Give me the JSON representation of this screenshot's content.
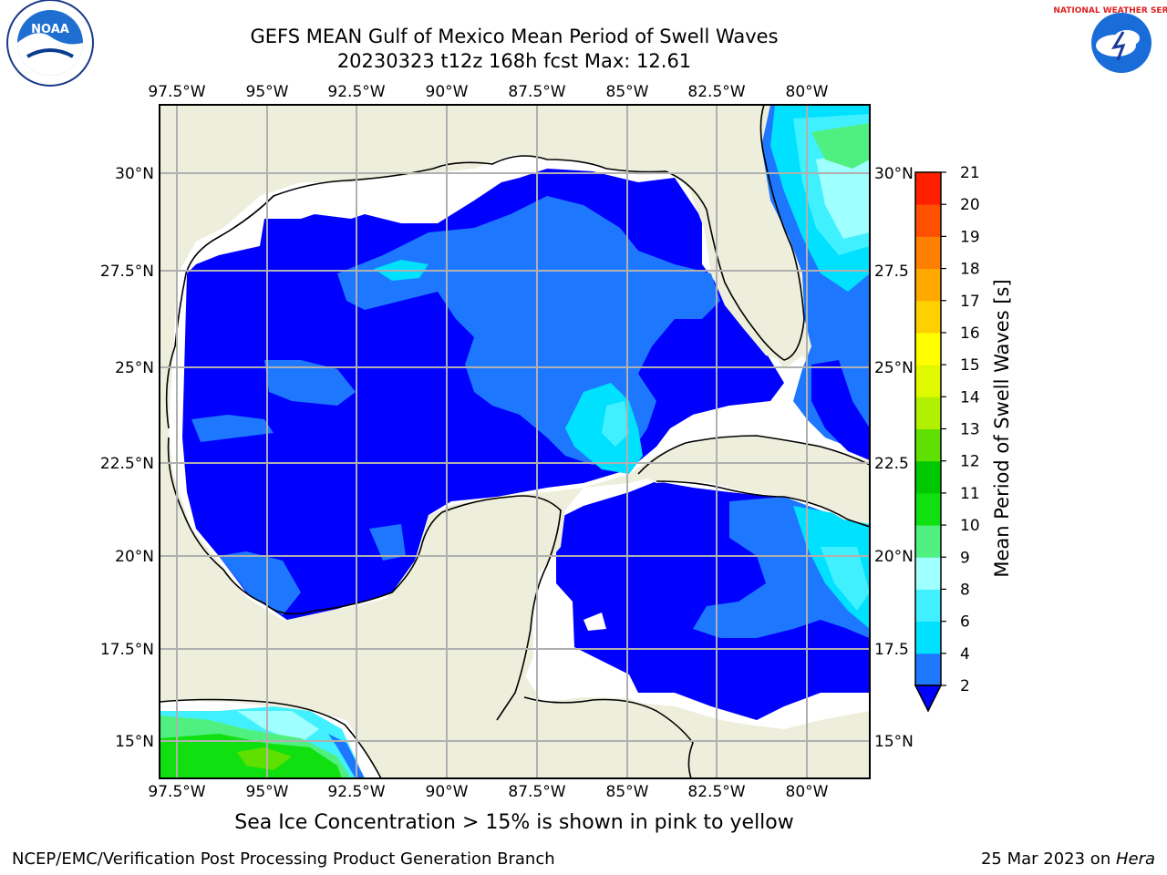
{
  "title": {
    "line1": "GEFS MEAN Gulf of Mexico Mean Period of Swell Waves",
    "line2": "20230323 t12z 168h fcst   Max: 12.61"
  },
  "caption": "Sea Ice Concentration > 15% is shown in pink to yellow",
  "footer": {
    "left": "NCEP/EMC/Verification Post Processing Product Generation Branch",
    "date": "25 Mar 2023 on ",
    "host": "Hera"
  },
  "logos": {
    "left_label": "NOAA",
    "right_label": "NATIONAL WEATHER SERVICE"
  },
  "map": {
    "lon_labels": [
      "97.5°W",
      "95°W",
      "92.5°W",
      "90°W",
      "87.5°W",
      "85°W",
      "82.5°W",
      "80°W"
    ],
    "lat_labels_left": [
      "30°N",
      "27.5°N",
      "25°N",
      "22.5°N",
      "20°N",
      "17.5°N",
      "15°N"
    ],
    "lat_labels_right": [
      "30°N",
      "27.5",
      "25°N",
      "22.5",
      "20°N",
      "17.5",
      "15°N"
    ],
    "land_color": "#eeeedc",
    "ocean_nodata_color": "#ffffff"
  },
  "colorbar": {
    "label": "Mean Period of Swell Waves [s]",
    "ticks": [
      "2",
      "4",
      "6",
      "8",
      "9",
      "10",
      "11",
      "12",
      "13",
      "14",
      "15",
      "16",
      "17",
      "18",
      "19",
      "20",
      "21"
    ],
    "colors": [
      "#0000ff",
      "#1e78ff",
      "#00e0ff",
      "#40f0ff",
      "#a0ffff",
      "#50f080",
      "#10e010",
      "#00c800",
      "#60e000",
      "#b0f000",
      "#e0f800",
      "#ffff00",
      "#ffd000",
      "#ffa800",
      "#ff8000",
      "#ff5000",
      "#ff2000",
      "#ff0000"
    ]
  }
}
